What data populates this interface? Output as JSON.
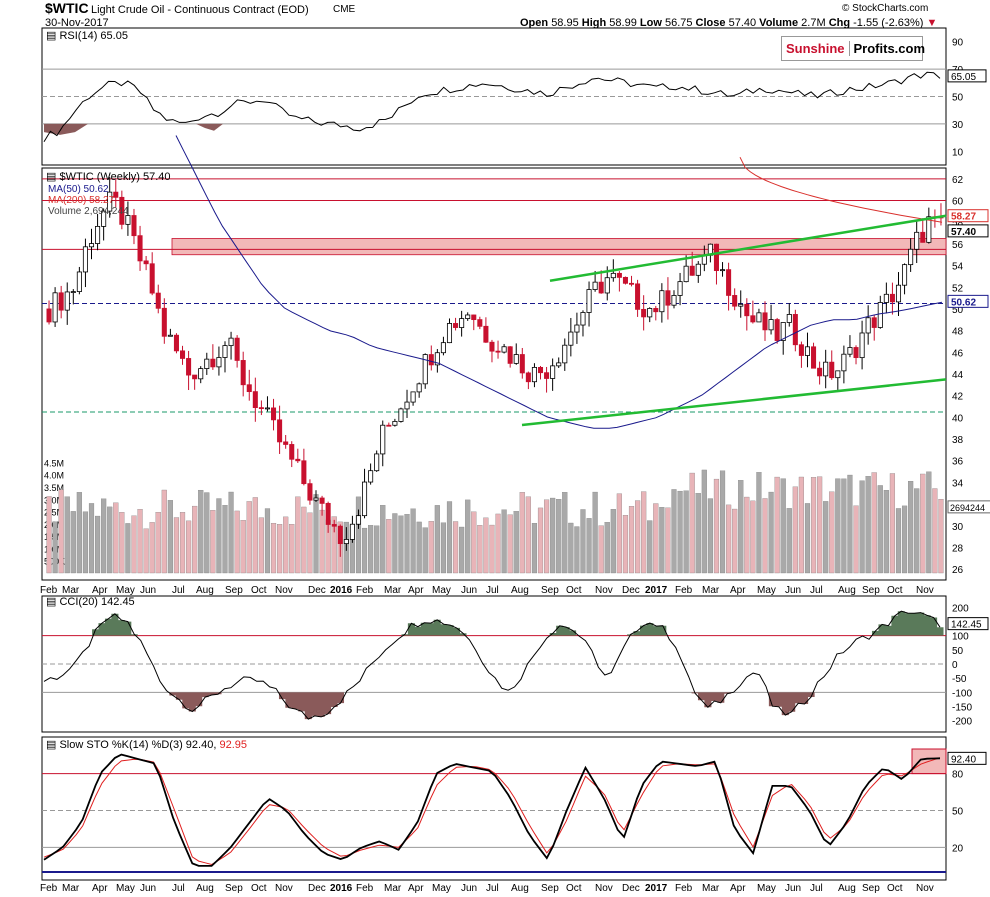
{
  "header": {
    "symbol": "$WTIC",
    "name": "Light Crude Oil - Continuous Contract (EOD)",
    "exchange": "CME",
    "watermark": "© StockCharts.com",
    "date": "30-Nov-2017",
    "open_label": "Open",
    "open": "58.95",
    "high_label": "High",
    "high": "58.99",
    "low_label": "Low",
    "low": "56.75",
    "close_label": "Close",
    "close": "57.40",
    "volume_label": "Volume",
    "volume": "2.7M",
    "chg_label": "Chg",
    "chg": "-1.55 (-2.63%)",
    "chg_arrow": "▼"
  },
  "logo": {
    "part1": "Sunshine",
    "part2": "Profits.com"
  },
  "rsi": {
    "label": "RSI(14) 65.05",
    "value_tag": "65.05",
    "ticks": [
      "90",
      "70",
      "50",
      "30",
      "10"
    ]
  },
  "price": {
    "legend_title": "$WTIC (Weekly) 57.40",
    "legend_ma50": "MA(50) 50.62",
    "legend_ma200": "MA(200) 58.27",
    "legend_volume": "Volume 2,694,244",
    "tag_close": "57.40",
    "tag_ma200": "58.27",
    "tag_ma50": "50.62",
    "tag_volume": "2694244",
    "ticks": [
      "62",
      "60",
      "58",
      "56",
      "54",
      "52",
      "50",
      "48",
      "46",
      "44",
      "42",
      "40",
      "38",
      "36",
      "34",
      "32",
      "30",
      "28",
      "26"
    ],
    "volume_ticks": [
      "4.5M",
      "4.0M",
      "3.5M",
      "3.0M",
      "2.5M",
      "2.0M",
      "1.5M",
      "1.0M",
      "500K"
    ]
  },
  "x_axis": [
    "Feb",
    "Mar",
    "Apr",
    "May",
    "Jun",
    "Jul",
    "Aug",
    "Sep",
    "Oct",
    "Nov",
    "Dec",
    "2016",
    "Feb",
    "Mar",
    "Apr",
    "May",
    "Jun",
    "Jul",
    "Aug",
    "Sep",
    "Oct",
    "Nov",
    "Dec",
    "2017",
    "Feb",
    "Mar",
    "Apr",
    "May",
    "Jun",
    "Jul",
    "Aug",
    "Sep",
    "Oct",
    "Nov"
  ],
  "x_axis_bold": [
    "2016",
    "2017"
  ],
  "cci": {
    "label": "CCI(20) 142.45",
    "value_tag": "142.45",
    "ticks": [
      "200",
      "150",
      "100",
      "50",
      "0",
      "-50",
      "-100",
      "-150",
      "-200"
    ]
  },
  "sto": {
    "label_k": "Slow STO %K(14) %D(3) 92.40,",
    "label_d": "92.95",
    "value_tag": "92.40",
    "ticks": [
      "80",
      "50",
      "20"
    ]
  },
  "colors": {
    "up": "#000000",
    "down": "#c8102e",
    "ma50": "#1a1a8c",
    "ma200": "#d9302c",
    "trend": "#22bb33",
    "zone": "#f2b8b8",
    "vol_up": "#a9a9a9",
    "vol_down": "#e8b4b8",
    "overbought_fill": "#5a7a5a",
    "oversold_fill": "#8a5a5a",
    "d_line": "#e02020"
  },
  "chart_data": {
    "type": "candlestick",
    "title": "$WTIC Light Crude Oil - Continuous Contract (EOD) CME",
    "period": "Weekly",
    "y_range": [
      25,
      63
    ],
    "horizontal_levels": [
      62,
      60,
      55.5,
      50.5,
      40.5
    ],
    "resistance_zone": [
      55,
      56.5
    ],
    "series": [
      {
        "name": "MA(50)",
        "last": 50.62
      },
      {
        "name": "MA(200)",
        "last": 58.27
      },
      {
        "name": "Volume",
        "last": 2694244
      }
    ],
    "close_path": [
      50,
      51,
      52,
      56,
      58.5,
      60,
      58,
      55,
      52,
      48,
      46,
      44,
      45,
      46,
      47,
      44,
      42,
      40,
      38,
      36,
      34,
      32,
      30.5,
      29,
      31,
      34,
      38,
      40,
      42,
      44,
      46,
      48,
      49,
      50,
      48,
      47,
      46,
      45,
      44,
      44.5,
      46,
      48,
      50,
      52,
      53,
      52,
      51,
      50,
      50.5,
      52,
      53,
      54,
      55,
      53,
      51,
      49,
      48.5,
      47.5,
      48.5,
      47,
      45,
      44,
      44.5,
      46,
      48,
      49.5,
      51,
      53,
      56,
      58,
      57.4
    ],
    "rsi_path": [
      20,
      25,
      40,
      52,
      58,
      60,
      55,
      40,
      32,
      30,
      36,
      38,
      44,
      46,
      48,
      40,
      34,
      32,
      30,
      29,
      27,
      30,
      34,
      44,
      52,
      54,
      56,
      58,
      60,
      58,
      56,
      54,
      52,
      56,
      60,
      64,
      62,
      60,
      58,
      56,
      58,
      56,
      54,
      52,
      50,
      54,
      56,
      54,
      52,
      50,
      52,
      55,
      56,
      58,
      60,
      64,
      66,
      65
    ],
    "cci_path": [
      -60,
      -40,
      0,
      100,
      170,
      150,
      60,
      -60,
      -120,
      -160,
      -120,
      -80,
      -60,
      -60,
      -100,
      -160,
      -190,
      -170,
      -120,
      -60,
      20,
      80,
      130,
      160,
      150,
      130,
      60,
      -40,
      -100,
      -20,
      80,
      140,
      120,
      40,
      -60,
      60,
      150,
      140,
      80,
      -80,
      -160,
      -120,
      -60,
      -20,
      -160,
      -180,
      -120,
      -40,
      40,
      80,
      110,
      150,
      190,
      170,
      142.45
    ],
    "sto_k_path": [
      10,
      20,
      40,
      80,
      96,
      92,
      88,
      40,
      5,
      5,
      20,
      40,
      60,
      50,
      30,
      15,
      10,
      20,
      25,
      18,
      40,
      80,
      88,
      85,
      82,
      60,
      30,
      10,
      50,
      85,
      60,
      25,
      70,
      90,
      88,
      86,
      90,
      35,
      15,
      70,
      70,
      50,
      20,
      40,
      70,
      85,
      75,
      92,
      92.4
    ],
    "sto_d_path": [
      12,
      18,
      35,
      70,
      90,
      92,
      89,
      50,
      10,
      6,
      16,
      35,
      55,
      52,
      35,
      20,
      12,
      18,
      22,
      20,
      35,
      70,
      85,
      86,
      83,
      66,
      38,
      14,
      42,
      78,
      64,
      32,
      62,
      86,
      88,
      87,
      88,
      45,
      20,
      62,
      72,
      55,
      26,
      38,
      64,
      80,
      78,
      88,
      92.95
    ]
  }
}
